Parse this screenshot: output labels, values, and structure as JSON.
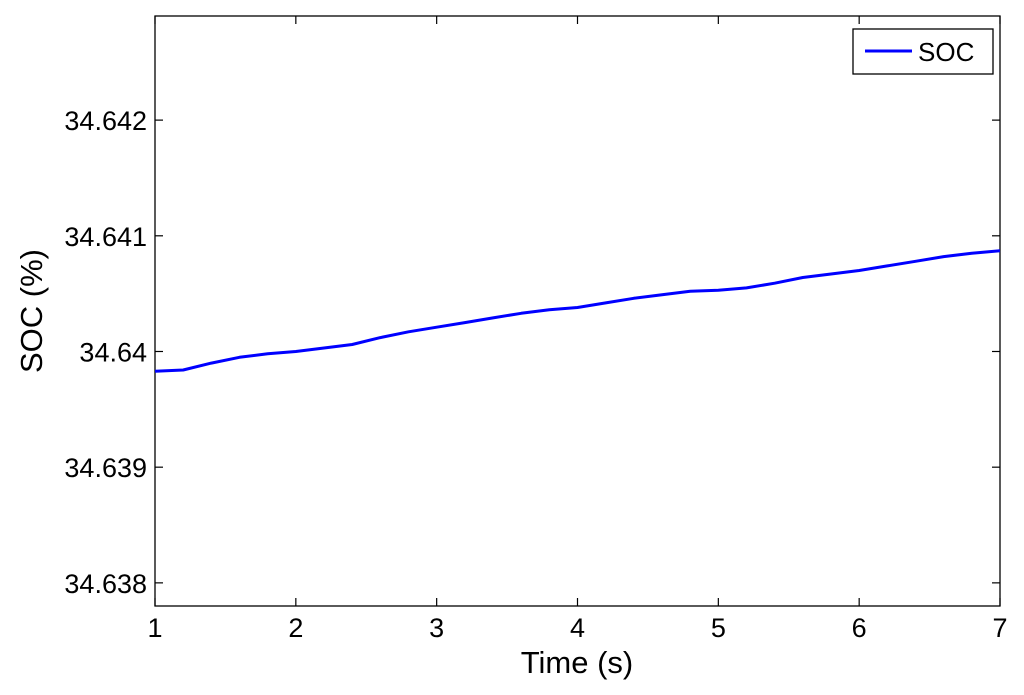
{
  "chart_data": {
    "type": "line",
    "title": "",
    "xlabel": "Time (s)",
    "ylabel": "SOC (%)",
    "xlim": [
      1,
      7
    ],
    "ylim": [
      34.6378,
      34.6429
    ],
    "x_ticks": [
      1,
      2,
      3,
      4,
      5,
      6,
      7
    ],
    "x_tick_labels": [
      "1",
      "2",
      "3",
      "4",
      "5",
      "6",
      "7"
    ],
    "y_ticks": [
      34.638,
      34.639,
      34.64,
      34.641,
      34.642
    ],
    "y_tick_labels": [
      "34.638",
      "34.639",
      "34.64",
      "34.641",
      "34.642"
    ],
    "grid": false,
    "legend_position": "top-right",
    "series": [
      {
        "name": "SOC",
        "color": "#0000ff",
        "x": [
          1.0,
          1.2,
          1.4,
          1.6,
          1.8,
          2.0,
          2.2,
          2.4,
          2.6,
          2.8,
          3.0,
          3.2,
          3.4,
          3.6,
          3.8,
          4.0,
          4.2,
          4.4,
          4.6,
          4.8,
          5.0,
          5.2,
          5.4,
          5.6,
          5.8,
          6.0,
          6.2,
          6.4,
          6.6,
          6.8,
          7.0
        ],
        "y": [
          34.63983,
          34.63984,
          34.6399,
          34.63995,
          34.63998,
          34.64,
          34.64003,
          34.64006,
          34.64012,
          34.64017,
          34.64021,
          34.64025,
          34.64029,
          34.64033,
          34.64036,
          34.64038,
          34.64042,
          34.64046,
          34.64049,
          34.64052,
          34.64053,
          34.64055,
          34.64059,
          34.64064,
          34.64067,
          34.6407,
          34.64074,
          34.64078,
          34.64082,
          34.64085,
          34.64087
        ]
      }
    ]
  }
}
